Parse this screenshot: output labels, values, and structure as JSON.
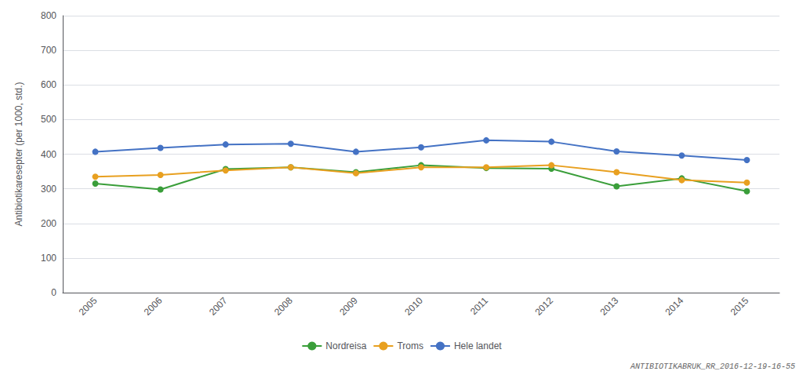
{
  "chart_data": {
    "type": "line",
    "ylabel": "Antibiotikaresepter (per 1000, std.)",
    "categories": [
      "2005",
      "2006",
      "2007",
      "2008",
      "2009",
      "2010",
      "2011",
      "2012",
      "2013",
      "2014",
      "2015"
    ],
    "series": [
      {
        "name": "Nordreisa",
        "color": "#3a9e3a",
        "values": [
          315,
          298,
          357,
          362,
          348,
          368,
          360,
          358,
          307,
          330,
          293
        ]
      },
      {
        "name": "Troms",
        "color": "#e8a020",
        "values": [
          335,
          340,
          353,
          362,
          345,
          362,
          362,
          368,
          348,
          325,
          318
        ]
      },
      {
        "name": "Hele landet",
        "color": "#4472c4",
        "values": [
          407,
          418,
          428,
          430,
          407,
          420,
          440,
          436,
          408,
          396,
          383
        ]
      }
    ],
    "ylim": [
      0,
      800
    ],
    "yticks": [
      0,
      100,
      200,
      300,
      400,
      500,
      600,
      700,
      800
    ],
    "grid": true,
    "legend": "bottom",
    "marker": "circle",
    "annotations": [
      "ANTIBIOTIKABRUK_RR_2016-12-19-16-55"
    ]
  }
}
